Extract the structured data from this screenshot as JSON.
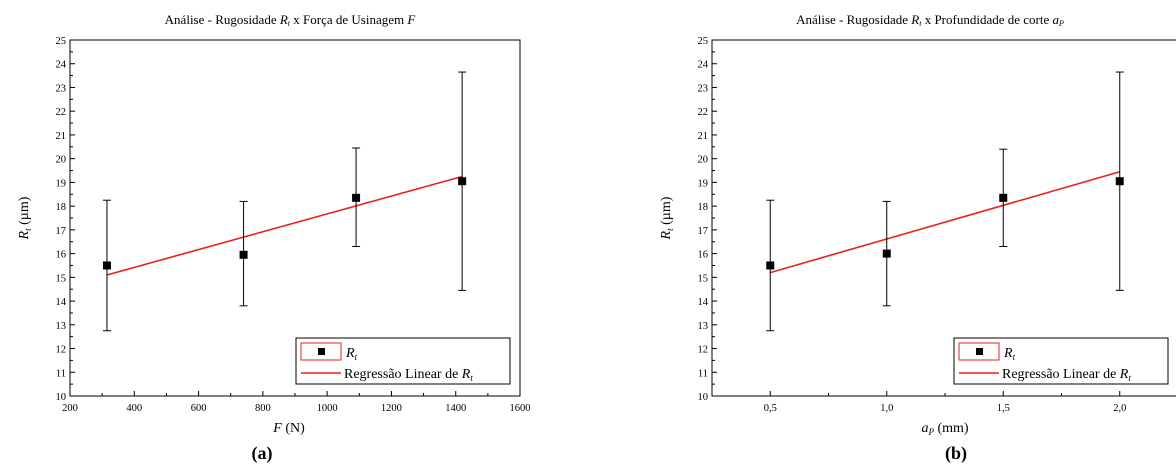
{
  "chart_data": [
    {
      "type": "scatter",
      "title_prefix": "Análise - Rugosidade ",
      "title_var1": "R",
      "title_var1_sub": "t",
      "title_middle": " x Força de Usinagem ",
      "title_var2": "F",
      "title_var2_sub": "",
      "xlabel_var": "F",
      "xlabel_sub": "",
      "xlabel_unit": " (N)",
      "ylabel_var": "R",
      "ylabel_sub": "t",
      "ylabel_unit": " (µm)",
      "xlim": [
        200,
        1600
      ],
      "ylim": [
        10,
        25
      ],
      "xticks": [
        200,
        400,
        600,
        800,
        1000,
        1200,
        1400,
        1600
      ],
      "xtick_labels": [
        "200",
        "400",
        "600",
        "800",
        "1000",
        "1200",
        "1400",
        "1600"
      ],
      "yticks": [
        10,
        11,
        12,
        13,
        14,
        15,
        16,
        17,
        18,
        19,
        20,
        21,
        22,
        23,
        24,
        25
      ],
      "x": [
        315,
        740,
        1090,
        1420
      ],
      "y": [
        15.5,
        15.95,
        18.35,
        19.05
      ],
      "err_low": [
        12.75,
        13.8,
        16.3,
        14.45
      ],
      "err_high": [
        18.25,
        18.2,
        20.45,
        23.65
      ],
      "fit": {
        "x": [
          315,
          1420
        ],
        "y": [
          15.1,
          19.25
        ]
      },
      "legend": {
        "marker_var": "R",
        "marker_sub": "t",
        "line_label": "Regressão Linear de ",
        "line_var": "R",
        "line_sub": "t",
        "position": "bottom-right"
      },
      "panel_label": "(a)",
      "colors": {
        "fit": "#e8201c",
        "legend_border": "#e8201c",
        "marker": "#000000"
      }
    },
    {
      "type": "scatter",
      "title_prefix": "Análise - Rugosidade ",
      "title_var1": "R",
      "title_var1_sub": "t",
      "title_middle": " x Profundidade de corte ",
      "title_var2": "a",
      "title_var2_sub": "P",
      "xlabel_var": "a",
      "xlabel_sub": "P",
      "xlabel_unit": " (mm)",
      "ylabel_var": "R",
      "ylabel_sub": "t",
      "ylabel_unit": " (µm)",
      "xlim": [
        0.25,
        2.25
      ],
      "ylim": [
        10,
        25
      ],
      "xticks": [
        0.5,
        1.0,
        1.5,
        2.0
      ],
      "xtick_labels": [
        "0,5",
        "1,0",
        "1,5",
        "2,0"
      ],
      "yticks": [
        10,
        11,
        12,
        13,
        14,
        15,
        16,
        17,
        18,
        19,
        20,
        21,
        22,
        23,
        24,
        25
      ],
      "x": [
        0.5,
        1.0,
        1.5,
        2.0
      ],
      "y": [
        15.5,
        16.0,
        18.35,
        19.05
      ],
      "err_low": [
        12.75,
        13.8,
        16.3,
        14.45
      ],
      "err_high": [
        18.25,
        18.2,
        20.4,
        23.65
      ],
      "fit": {
        "x": [
          0.5,
          2.0
        ],
        "y": [
          15.2,
          19.45
        ]
      },
      "legend": {
        "marker_var": "R",
        "marker_sub": "t",
        "line_label": "Regressão Linear de ",
        "line_var": "R",
        "line_sub": "t",
        "position": "bottom-right"
      },
      "panel_label": "(b)",
      "colors": {
        "fit": "#e8201c",
        "legend_border": "#e8201c",
        "marker": "#000000"
      }
    }
  ]
}
